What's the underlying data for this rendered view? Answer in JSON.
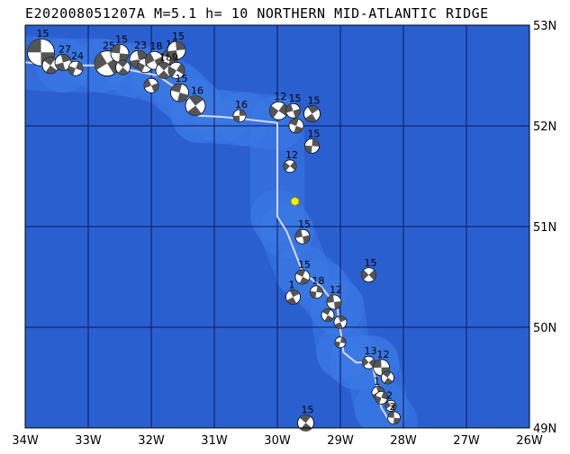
{
  "title": "E202008051207A M=5.1 h= 10 NORTHERN MID-ATLANTIC RIDGE",
  "axes": {
    "lon_labels": [
      "34W",
      "33W",
      "32W",
      "31W",
      "30W",
      "29W",
      "28W",
      "27W",
      "26W"
    ],
    "lat_labels": [
      "53N",
      "52N",
      "51N",
      "50N",
      "49N"
    ],
    "lon_range": [
      -34,
      -26
    ],
    "lat_range": [
      49,
      53
    ]
  },
  "colors": {
    "ocean": "#2a5fd0",
    "ridge": "#3c7ae6",
    "grid": "#0a1a5a",
    "plate_boundary": "#d8d8e8",
    "epicenter": "#ffee00",
    "beachball_dark": "#555555"
  },
  "epicenter": {
    "lon": -29.72,
    "lat": 51.25
  },
  "plate_boundary": [
    [
      -34,
      52.63
    ],
    [
      -33.4,
      52.6
    ],
    [
      -32.8,
      52.6
    ],
    [
      -32.3,
      52.55
    ],
    [
      -31.9,
      52.5
    ],
    [
      -31.55,
      52.35
    ],
    [
      -31.3,
      52.2
    ],
    [
      -31.25,
      52.1
    ],
    [
      -30.9,
      52.09
    ],
    [
      -30.55,
      52.07
    ],
    [
      -30.0,
      52.03
    ],
    [
      -30.0,
      51.1
    ],
    [
      -29.85,
      50.95
    ],
    [
      -29.6,
      50.55
    ],
    [
      -29.3,
      50.4
    ],
    [
      -29.05,
      50.2
    ],
    [
      -28.95,
      49.75
    ],
    [
      -28.75,
      49.65
    ],
    [
      -28.5,
      49.65
    ],
    [
      -28.35,
      49.2
    ],
    [
      -28.2,
      49.05
    ]
  ],
  "mechanisms": [
    {
      "lon": -33.75,
      "lat": 52.73,
      "label": "15",
      "size": 15
    },
    {
      "lon": -33.6,
      "lat": 52.6,
      "label": "",
      "size": 9
    },
    {
      "lon": -33.4,
      "lat": 52.63,
      "label": "27",
      "size": 9
    },
    {
      "lon": -33.2,
      "lat": 52.57,
      "label": "24",
      "size": 8
    },
    {
      "lon": -32.7,
      "lat": 52.62,
      "label": "25",
      "size": 14
    },
    {
      "lon": -32.5,
      "lat": 52.72,
      "label": "15",
      "size": 10
    },
    {
      "lon": -32.45,
      "lat": 52.58,
      "label": "",
      "size": 8
    },
    {
      "lon": -32.2,
      "lat": 52.66,
      "label": "23",
      "size": 10
    },
    {
      "lon": -32.1,
      "lat": 52.6,
      "label": "",
      "size": 8
    },
    {
      "lon": -31.95,
      "lat": 52.65,
      "label": "18",
      "size": 10
    },
    {
      "lon": -31.7,
      "lat": 52.68,
      "label": "15",
      "size": 9
    },
    {
      "lon": -31.8,
      "lat": 52.55,
      "label": "18",
      "size": 9
    },
    {
      "lon": -31.6,
      "lat": 52.75,
      "label": "15",
      "size": 10
    },
    {
      "lon": -31.6,
      "lat": 52.55,
      "label": "9",
      "size": 9
    },
    {
      "lon": -32.0,
      "lat": 52.4,
      "label": "",
      "size": 8
    },
    {
      "lon": -31.55,
      "lat": 52.33,
      "label": "15",
      "size": 10
    },
    {
      "lon": -31.3,
      "lat": 52.2,
      "label": "16",
      "size": 11
    },
    {
      "lon": -30.6,
      "lat": 52.1,
      "label": "16",
      "size": 7
    },
    {
      "lon": -29.98,
      "lat": 52.15,
      "label": "12",
      "size": 10
    },
    {
      "lon": -29.75,
      "lat": 52.15,
      "label": "15",
      "size": 8
    },
    {
      "lon": -29.7,
      "lat": 52.0,
      "label": "",
      "size": 8
    },
    {
      "lon": -29.45,
      "lat": 52.12,
      "label": "15",
      "size": 9
    },
    {
      "lon": -29.45,
      "lat": 51.8,
      "label": "15",
      "size": 8
    },
    {
      "lon": -29.8,
      "lat": 51.6,
      "label": "12",
      "size": 7
    },
    {
      "lon": -29.6,
      "lat": 50.9,
      "label": "15",
      "size": 8
    },
    {
      "lon": -29.6,
      "lat": 50.5,
      "label": "15",
      "size": 8
    },
    {
      "lon": -29.75,
      "lat": 50.3,
      "label": "1",
      "size": 8
    },
    {
      "lon": -29.38,
      "lat": 50.35,
      "label": "18",
      "size": 7
    },
    {
      "lon": -28.55,
      "lat": 50.52,
      "label": "15",
      "size": 8
    },
    {
      "lon": -29.1,
      "lat": 50.25,
      "label": "12",
      "size": 8
    },
    {
      "lon": -29.2,
      "lat": 50.12,
      "label": "",
      "size": 7
    },
    {
      "lon": -29.0,
      "lat": 50.05,
      "label": "",
      "size": 7
    },
    {
      "lon": -29.0,
      "lat": 49.85,
      "label": "",
      "size": 6
    },
    {
      "lon": -28.55,
      "lat": 49.65,
      "label": "13",
      "size": 7
    },
    {
      "lon": -28.35,
      "lat": 49.6,
      "label": "12",
      "size": 9
    },
    {
      "lon": -28.25,
      "lat": 49.5,
      "label": "",
      "size": 7
    },
    {
      "lon": -28.4,
      "lat": 49.35,
      "label": "1",
      "size": 7
    },
    {
      "lon": -28.35,
      "lat": 49.3,
      "label": "",
      "size": 7
    },
    {
      "lon": -28.2,
      "lat": 49.22,
      "label": "2",
      "size": 6
    },
    {
      "lon": -28.15,
      "lat": 49.1,
      "label": "2",
      "size": 7
    },
    {
      "lon": -29.55,
      "lat": 49.05,
      "label": "15",
      "size": 9
    }
  ]
}
